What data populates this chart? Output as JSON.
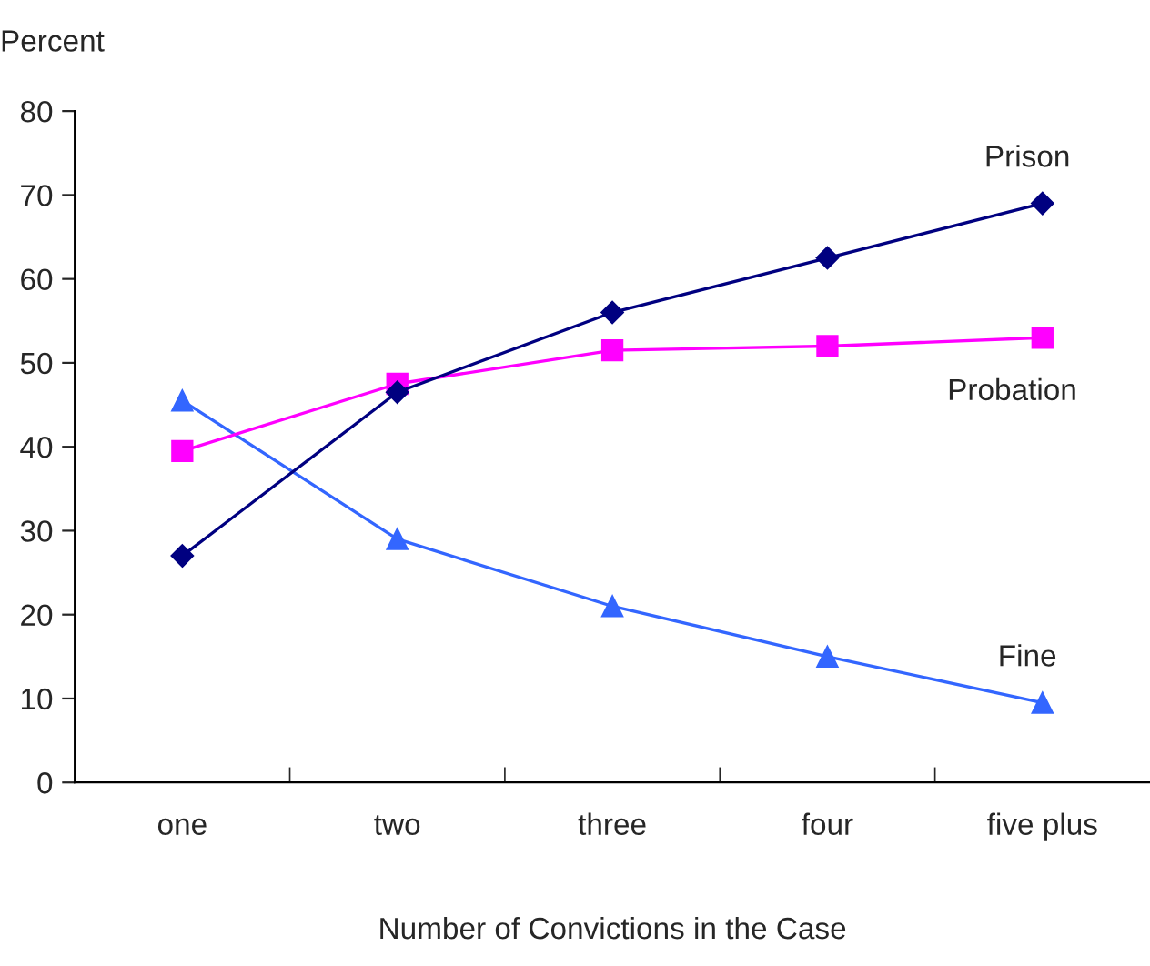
{
  "chart_data": {
    "type": "line",
    "ylabel": "Percent",
    "xlabel": "Number of Convictions in the Case",
    "categories": [
      "one",
      "two",
      "three",
      "four",
      "five plus"
    ],
    "series": [
      {
        "name": "Prison",
        "color": "#000080",
        "marker": "diamond",
        "values": [
          27,
          46.5,
          56,
          62.5,
          69
        ]
      },
      {
        "name": "Probation",
        "color": "#ff00ff",
        "marker": "square",
        "values": [
          39.5,
          47.5,
          51.5,
          52,
          53
        ]
      },
      {
        "name": "Fine",
        "color": "#3366ff",
        "marker": "triangle",
        "values": [
          45.5,
          29,
          21,
          15,
          9.5
        ]
      }
    ],
    "ylim": [
      0,
      80
    ],
    "yticks": [
      0,
      10,
      20,
      30,
      40,
      50,
      60,
      70,
      80
    ],
    "grid": false,
    "legend": false
  }
}
